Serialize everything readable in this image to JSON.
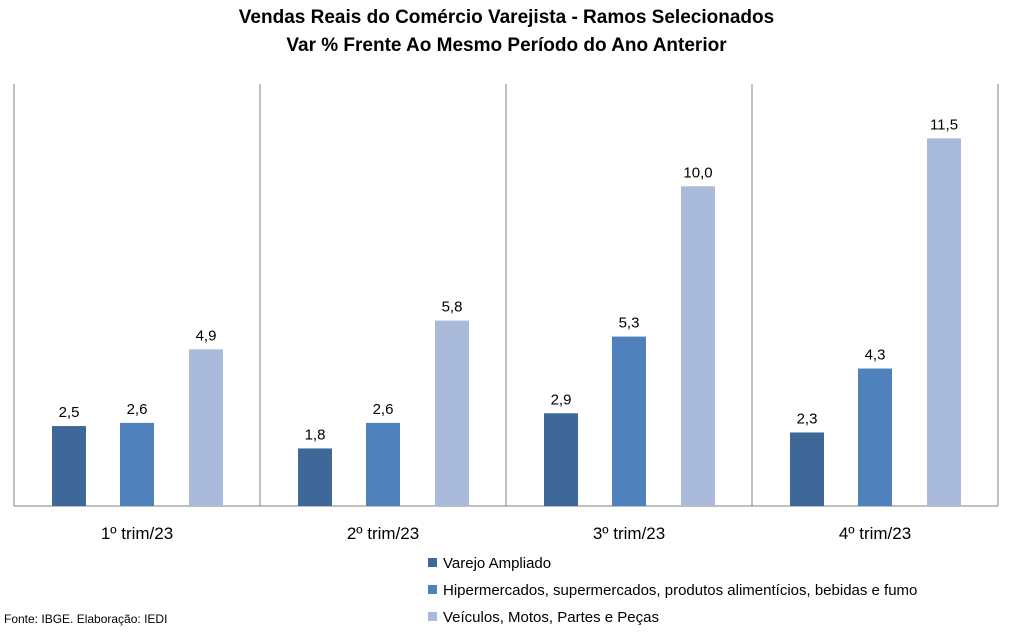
{
  "chart_data": {
    "type": "bar",
    "title": "Vendas Reais do Comércio Varejista - Ramos Selecionados",
    "subtitle": "Var % Frente Ao Mesmo Período do Ano Anterior",
    "categories": [
      "1º trim/23",
      "2º trim/23",
      "3º trim/23",
      "4º trim/23"
    ],
    "series": [
      {
        "name": "Varejo Ampliado",
        "color": "#3F6797",
        "values": [
          2.5,
          1.8,
          2.9,
          2.3
        ]
      },
      {
        "name": "Hipermercados, supermercados, produtos alimentícios, bebidas e fumo",
        "color": "#4F81BD",
        "values": [
          2.6,
          2.6,
          5.3,
          4.3
        ]
      },
      {
        "name": "Veículos, Motos, Partes e Peças",
        "color": "#AABADB",
        "values": [
          4.9,
          5.8,
          10.0,
          11.5
        ]
      }
    ],
    "data_labels": [
      [
        "2,5",
        "2,6",
        "4,9"
      ],
      [
        "1,8",
        "2,6",
        "5,8"
      ],
      [
        "2,9",
        "5,3",
        "10,0"
      ],
      [
        "2,3",
        "4,3",
        "11,5"
      ]
    ],
    "ylim": [
      0,
      13.2
    ],
    "grid": false,
    "legend_position": "bottom-right"
  },
  "source": "Fonte: IBGE. Elaboração: IEDI"
}
